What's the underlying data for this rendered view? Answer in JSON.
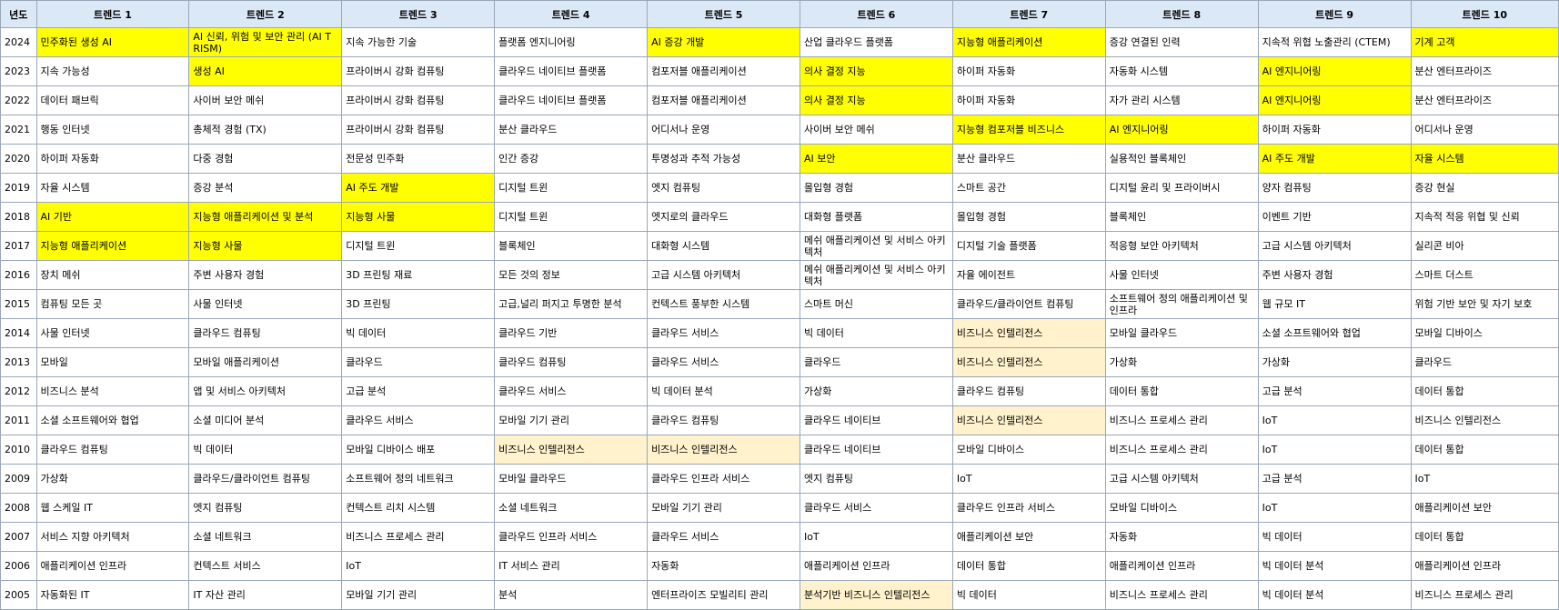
{
  "table": {
    "headers": [
      "년도",
      "트렌드 1",
      "트렌드 2",
      "트렌드 3",
      "트렌드 4",
      "트렌드 5",
      "트렌드 6",
      "트렌드 7",
      "트렌드 8",
      "트렌드 9",
      "트렌드 10"
    ],
    "highlight_colors": {
      "yellow": "#ffff00",
      "peach": "#fff2cc"
    },
    "rows": [
      {
        "year": "2024",
        "cells": [
          "민주화된 생성 AI",
          "AI 신뢰, 위험 및 보안 관리 (AI TRISM)",
          "지속 가능한 기술",
          "플랫폼 엔지니어링",
          "AI 증강 개발",
          "산업 클라우드 플랫폼",
          "지능형 애플리케이션",
          "증강 연결된 인력",
          "지속적 위협 노출관리 (CTEM)",
          "기계 고객"
        ],
        "highlights": [
          "yellow",
          "yellow",
          "",
          "",
          "yellow",
          "",
          "yellow",
          "",
          "",
          "yellow"
        ]
      },
      {
        "year": "2023",
        "cells": [
          "지속 가능성",
          "생성 AI",
          "프라이버시 강화 컴퓨팅",
          "클라우드 네이티브 플랫폼",
          "컴포저블 애플리케이션",
          "의사 결정 지능",
          "하이퍼 자동화",
          "자동화 시스템",
          "AI 엔지니어링",
          "분산 엔터프라이즈"
        ],
        "highlights": [
          "",
          "yellow",
          "",
          "",
          "",
          "yellow",
          "",
          "",
          "yellow",
          ""
        ]
      },
      {
        "year": "2022",
        "cells": [
          "데이터 패브릭",
          "사이버 보안 메쉬",
          "프라이버시 강화 컴퓨팅",
          "클라우드 네이티브 플랫폼",
          "컴포저블 애플리케이션",
          "의사 결정 지능",
          "하이퍼 자동화",
          "자가 관리 시스템",
          "AI 엔지니어링",
          "분산 엔터프라이즈"
        ],
        "highlights": [
          "",
          "",
          "",
          "",
          "",
          "yellow",
          "",
          "",
          "yellow",
          ""
        ]
      },
      {
        "year": "2021",
        "cells": [
          "행동 인터넷",
          "총체적 경험 (TX)",
          "프라이버시 강화 컴퓨팅",
          "분산 클라우드",
          "어디서나 운영",
          "사이버 보안 메쉬",
          "지능형 컴포저블 비즈니스",
          "AI 엔지니어링",
          "하이퍼 자동화",
          "어디서나 운영"
        ],
        "highlights": [
          "",
          "",
          "",
          "",
          "",
          "",
          "yellow",
          "yellow",
          "",
          ""
        ]
      },
      {
        "year": "2020",
        "cells": [
          "하이퍼 자동화",
          "다중 경험",
          "전문성 민주화",
          "인간 증강",
          "투명성과 추적 가능성",
          "AI 보안",
          "분산 클라우드",
          "실용적인 블록체인",
          "AI 주도 개발",
          "자율 시스템"
        ],
        "highlights": [
          "",
          "",
          "",
          "",
          "",
          "yellow",
          "",
          "",
          "yellow",
          "yellow"
        ]
      },
      {
        "year": "2019",
        "cells": [
          "자율 시스템",
          "증강 분석",
          "AI 주도 개발",
          "디지털 트윈",
          "엣지 컴퓨팅",
          "몰입형 경험",
          "스마트 공간",
          "디지털 윤리 및 프라이버시",
          "양자 컴퓨팅",
          "증강 현실"
        ],
        "highlights": [
          "",
          "",
          "yellow",
          "",
          "",
          "",
          "",
          "",
          "",
          ""
        ]
      },
      {
        "year": "2018",
        "cells": [
          "AI 기반",
          "지능형 애플리케이션 및 분석",
          "지능형 사물",
          "디지털 트윈",
          "엣지로의 클라우드",
          "대화형 플랫폼",
          "몰입형 경험",
          "블록체인",
          "이벤트 기반",
          "지속적 적응 위협 및 신뢰"
        ],
        "highlights": [
          "yellow",
          "yellow",
          "yellow",
          "",
          "",
          "",
          "",
          "",
          "",
          ""
        ]
      },
      {
        "year": "2017",
        "cells": [
          "지능형 애플리케이션",
          "지능형 사물",
          "디지털 트윈",
          "블록체인",
          "대화형 시스템",
          "메쉬 애플리케이션 및 서비스 아키텍처",
          "디지털 기술 플랫폼",
          "적응형 보안 아키텍처",
          "고급 시스템 아키텍처",
          "실리콘 비아"
        ],
        "highlights": [
          "yellow",
          "yellow",
          "",
          "",
          "",
          "",
          "",
          "",
          "",
          ""
        ]
      },
      {
        "year": "2016",
        "cells": [
          "장치 메쉬",
          "주변 사용자 경험",
          "3D 프린팅 재료",
          "모든 것의 정보",
          "고급 시스템 아키텍처",
          "메쉬 애플리케이션 및 서비스 아키텍처",
          "자율 에이전트",
          "사물 인터넷",
          "주변 사용자 경험",
          "스마트 더스트"
        ],
        "highlights": [
          "",
          "",
          "",
          "",
          "",
          "",
          "",
          "",
          "",
          ""
        ]
      },
      {
        "year": "2015",
        "cells": [
          "컴퓨팅 모든 곳",
          "사물 인터넷",
          "3D 프린팅",
          "고급,널리 퍼지고 투명한 분석",
          "컨텍스트 풍부한 시스템",
          "스마트 머신",
          "클라우드/클라이언트 컴퓨팅",
          "소프트웨어 정의 애플리케이션 및 인프라",
          "웹 규모 IT",
          "위험 기반 보안 및 자기 보호"
        ],
        "highlights": [
          "",
          "",
          "",
          "",
          "",
          "",
          "",
          "",
          "",
          ""
        ]
      },
      {
        "year": "2014",
        "cells": [
          "사물 인터넷",
          "클라우드 컴퓨팅",
          "빅 데이터",
          "클라우드 기반",
          "클라우드 서비스",
          "빅 데이터",
          "비즈니스 인텔리전스",
          "모바일 클라우드",
          "소셜 소프트웨어와 협업",
          "모바일 디바이스"
        ],
        "highlights": [
          "",
          "",
          "",
          "",
          "",
          "",
          "peach",
          "",
          "",
          ""
        ]
      },
      {
        "year": "2013",
        "cells": [
          "모바일",
          "모바일 애플리케이션",
          "클라우드",
          "클라우드 컴퓨팅",
          "클라우드 서비스",
          "클라우드",
          "비즈니스 인텔리전스",
          "가상화",
          "가상화",
          "클라우드"
        ],
        "highlights": [
          "",
          "",
          "",
          "",
          "",
          "",
          "peach",
          "",
          "",
          ""
        ]
      },
      {
        "year": "2012",
        "cells": [
          "비즈니스 분석",
          "앱 및 서비스 아키텍처",
          "고급 분석",
          "클라우드 서비스",
          "빅 데이터 분석",
          "가상화",
          "클라우드 컴퓨팅",
          "데이터 통합",
          "고급 분석",
          "데이터 통합"
        ],
        "highlights": [
          "",
          "",
          "",
          "",
          "",
          "",
          "",
          "",
          "",
          ""
        ]
      },
      {
        "year": "2011",
        "cells": [
          "소셜 소프트웨어와 협업",
          "소셜 미디어 분석",
          "클라우드 서비스",
          "모바일 기기 관리",
          "클라우드 컴퓨팅",
          "클라우드 네이티브",
          "비즈니스 인텔리전스",
          "비즈니스 프로세스 관리",
          "IoT",
          "비즈니스 인텔리전스"
        ],
        "highlights": [
          "",
          "",
          "",
          "",
          "",
          "",
          "peach",
          "",
          "",
          ""
        ]
      },
      {
        "year": "2010",
        "cells": [
          "클라우드 컴퓨팅",
          "빅 데이터",
          "모바일 디바이스 배포",
          "비즈니스 인텔리전스",
          "비즈니스 인텔리전스",
          "클라우드 네이티브",
          "모바일 디바이스",
          "비즈니스 프로세스 관리",
          "IoT",
          "데이터 통합"
        ],
        "highlights": [
          "",
          "",
          "",
          "peach",
          "peach",
          "",
          "",
          "",
          "",
          ""
        ]
      },
      {
        "year": "2009",
        "cells": [
          "가상화",
          "클라우드/클라이언트 컴퓨팅",
          "소프트웨어 정의 네트워크",
          "모바일 클라우드",
          "클라우드 인프라 서비스",
          "엣지 컴퓨팅",
          "IoT",
          "고급 시스템 아키텍처",
          "고급 분석",
          "IoT"
        ],
        "highlights": [
          "",
          "",
          "",
          "",
          "",
          "",
          "",
          "",
          "",
          ""
        ]
      },
      {
        "year": "2008",
        "cells": [
          "웹 스케일 IT",
          "엣지 컴퓨팅",
          "컨텍스트 리치 시스템",
          "소셜 네트워크",
          "모바일 기기 관리",
          "클라우드 서비스",
          "클라우드 인프라 서비스",
          "모바일 디바이스",
          "IoT",
          "애플리케이션 보안"
        ],
        "highlights": [
          "",
          "",
          "",
          "",
          "",
          "",
          "",
          "",
          "",
          ""
        ]
      },
      {
        "year": "2007",
        "cells": [
          "서비스 지향 아키텍처",
          "소셜 네트워크",
          "비즈니스 프로세스 관리",
          "클라우드 인프라 서비스",
          "클라우드 서비스",
          "IoT",
          "애플리케이션 보안",
          "자동화",
          "빅 데이터",
          "데이터 통합"
        ],
        "highlights": [
          "",
          "",
          "",
          "",
          "",
          "",
          "",
          "",
          "",
          ""
        ]
      },
      {
        "year": "2006",
        "cells": [
          "애플리케이션 인프라",
          "컨텍스트 서비스",
          "IoT",
          "IT 서비스 관리",
          "자동화",
          "애플리케이션 인프라",
          "데이터 통합",
          "애플리케이션 인프라",
          "빅 데이터 분석",
          "애플리케이션 인프라"
        ],
        "highlights": [
          "",
          "",
          "",
          "",
          "",
          "",
          "",
          "",
          "",
          ""
        ]
      },
      {
        "year": "2005",
        "cells": [
          "자동화된 IT",
          "IT 자산 관리",
          "모바일 기기 관리",
          "분석",
          "엔터프라이즈 모빌리티 관리",
          "분석기반 비즈니스 인텔리전스",
          "빅 데이터",
          "비즈니스 프로세스 관리",
          "빅 데이터 분석",
          "비즈니스 프로세스 관리"
        ],
        "highlights": [
          "",
          "",
          "",
          "",
          "",
          "peach",
          "",
          "",
          "",
          ""
        ]
      }
    ]
  }
}
